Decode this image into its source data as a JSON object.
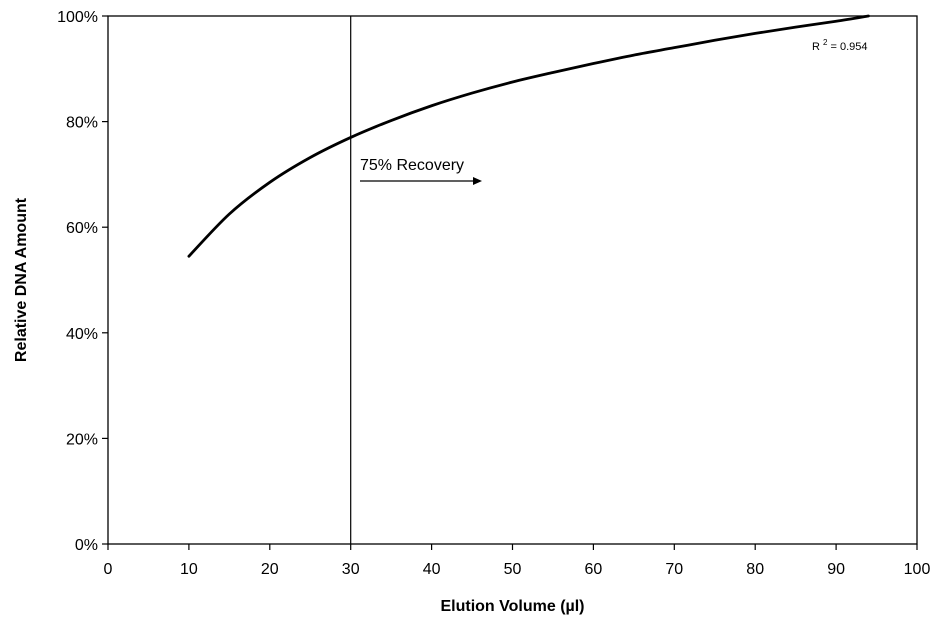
{
  "chart_data": {
    "type": "line",
    "xlabel": "Elution Volume (µl)",
    "ylabel": "Relative DNA Amount",
    "xlim": [
      0,
      100
    ],
    "ylim": [
      0,
      100
    ],
    "x_ticks": [
      0,
      10,
      20,
      30,
      40,
      50,
      60,
      70,
      80,
      90,
      100
    ],
    "y_ticks": [
      0,
      20,
      40,
      60,
      80,
      100
    ],
    "x_tick_labels": [
      "0",
      "10",
      "20",
      "30",
      "40",
      "50",
      "60",
      "70",
      "80",
      "90",
      "100"
    ],
    "y_tick_labels": [
      "0%",
      "20%",
      "40%",
      "60%",
      "80%",
      "100%"
    ],
    "grid": false,
    "series": [
      {
        "x": [
          10,
          15,
          20,
          25,
          30,
          35,
          40,
          45,
          50,
          55,
          60,
          65,
          70,
          75,
          80,
          85,
          90,
          94
        ],
        "y": [
          54.5,
          62.5,
          68.5,
          73.2,
          77.0,
          80.2,
          83.0,
          85.4,
          87.5,
          89.3,
          91.0,
          92.6,
          94.0,
          95.4,
          96.7,
          97.9,
          99.0,
          100
        ],
        "color": "#000000"
      }
    ],
    "reference_line": {
      "x": 30
    },
    "annotation": {
      "text": "75% Recovery",
      "arrow": "right"
    },
    "r2_label": {
      "prefix": "R",
      "superscript": "2",
      "text": " = 0.954"
    }
  }
}
